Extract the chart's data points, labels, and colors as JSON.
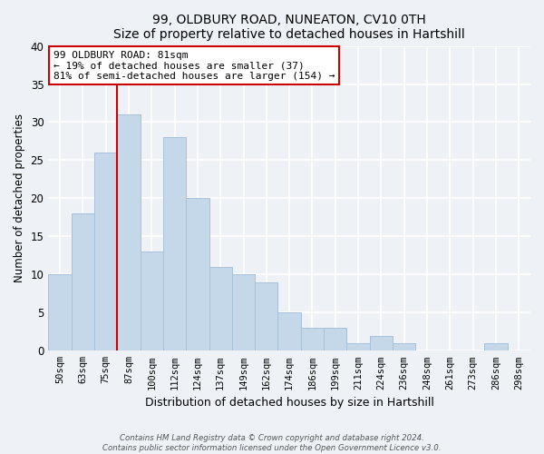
{
  "title": "99, OLDBURY ROAD, NUNEATON, CV10 0TH",
  "subtitle": "Size of property relative to detached houses in Hartshill",
  "xlabel": "Distribution of detached houses by size in Hartshill",
  "ylabel": "Number of detached properties",
  "categories": [
    "50sqm",
    "63sqm",
    "75sqm",
    "87sqm",
    "100sqm",
    "112sqm",
    "124sqm",
    "137sqm",
    "149sqm",
    "162sqm",
    "174sqm",
    "186sqm",
    "199sqm",
    "211sqm",
    "224sqm",
    "236sqm",
    "248sqm",
    "261sqm",
    "273sqm",
    "286sqm",
    "298sqm"
  ],
  "values": [
    10,
    18,
    26,
    31,
    13,
    28,
    20,
    11,
    10,
    9,
    5,
    3,
    3,
    1,
    2,
    1,
    0,
    0,
    0,
    1,
    0
  ],
  "bar_color": "#c5d8ea",
  "bar_edge_color": "#a8c0d8",
  "vline_x_index": 2.5,
  "vline_color": "#cc0000",
  "annotation_line1": "99 OLDBURY ROAD: 81sqm",
  "annotation_line2": "← 19% of detached houses are smaller (37)",
  "annotation_line3": "81% of semi-detached houses are larger (154) →",
  "annotation_box_color": "#ffffff",
  "annotation_box_edge": "#cc0000",
  "ylim": [
    0,
    40
  ],
  "yticks": [
    0,
    5,
    10,
    15,
    20,
    25,
    30,
    35,
    40
  ],
  "footer_line1": "Contains HM Land Registry data © Crown copyright and database right 2024.",
  "footer_line2": "Contains public sector information licensed under the Open Government Licence v3.0.",
  "bg_color": "#eef2f6",
  "plot_bg_color": "#eef2f6",
  "grid_color": "#ffffff"
}
